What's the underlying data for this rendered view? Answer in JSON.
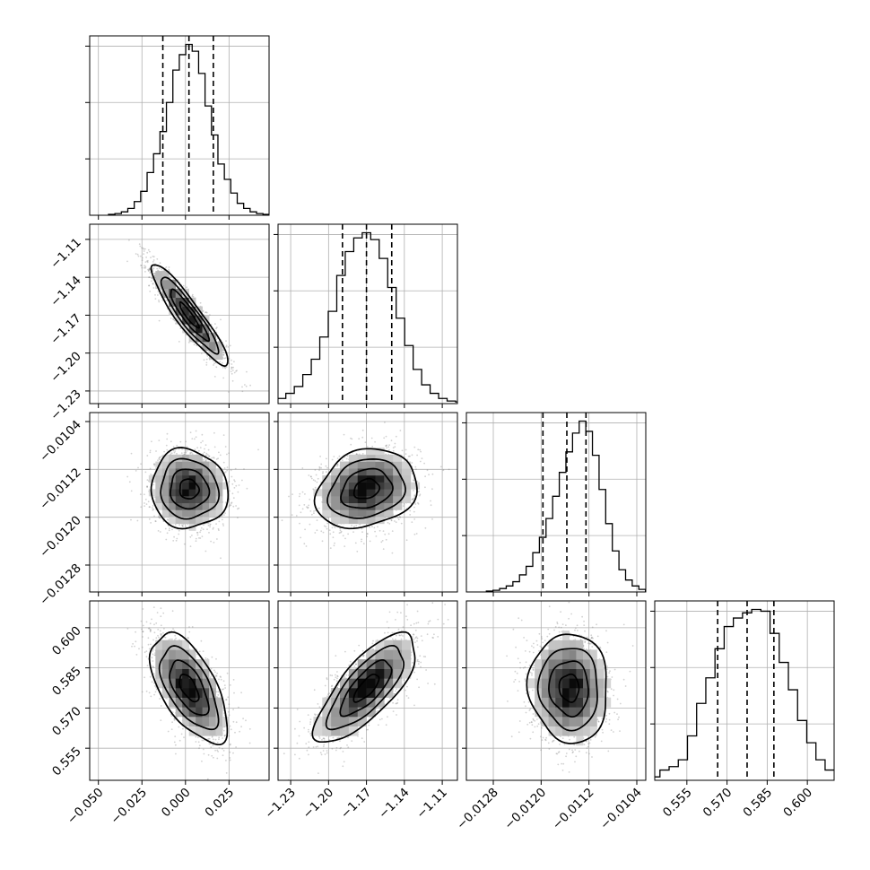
{
  "chart_data": {
    "type": "corner",
    "grid": true,
    "params": [
      {
        "range": [
          -0.055,
          0.048
        ],
        "ticks": [
          -0.05,
          -0.025,
          0.0,
          0.025
        ],
        "tick_labels": [
          "−0.050",
          "−0.025",
          "0.000",
          "0.025"
        ],
        "mean": 0.002,
        "sd": 0.011,
        "quantiles": [
          -0.013,
          0.002,
          0.016
        ],
        "hist_rel": [
          0.005,
          0.01,
          0.02,
          0.04,
          0.08,
          0.14,
          0.25,
          0.36,
          0.49,
          0.66,
          0.85,
          0.94,
          1.0,
          0.96,
          0.83,
          0.64,
          0.47,
          0.3,
          0.21,
          0.13,
          0.07,
          0.04,
          0.02,
          0.01,
          0.005
        ]
      },
      {
        "range": [
          -1.24,
          -1.098
        ],
        "ticks": [
          -1.23,
          -1.2,
          -1.17,
          -1.14,
          -1.11
        ],
        "tick_labels": [
          "−1.23",
          "−1.20",
          "−1.17",
          "−1.14",
          "−1.11"
        ],
        "mean": -1.17,
        "sd": 0.02,
        "quantiles": [
          -1.189,
          -1.17,
          -1.15
        ],
        "hist_rel": [
          0.01,
          0.015,
          0.03,
          0.06,
          0.1,
          0.17,
          0.26,
          0.39,
          0.54,
          0.75,
          0.89,
          0.97,
          1.0,
          0.96,
          0.85,
          0.68,
          0.5,
          0.34,
          0.2,
          0.11,
          0.06,
          0.03,
          0.015,
          0.01,
          0.005
        ]
      },
      {
        "range": [
          -0.01325,
          -0.01025
        ],
        "ticks": [
          -0.0128,
          -0.012,
          -0.0112,
          -0.0104
        ],
        "tick_labels": [
          "−0.0128",
          "−0.0120",
          "−0.0112",
          "−0.0104"
        ],
        "mean": -0.01153,
        "sd": 0.00033,
        "quantiles": [
          -0.01197,
          -0.01157,
          -0.01125
        ],
        "hist_rel": [
          0.005,
          0.01,
          0.02,
          0.035,
          0.06,
          0.1,
          0.15,
          0.23,
          0.32,
          0.43,
          0.56,
          0.7,
          0.82,
          0.93,
          1.0,
          0.94,
          0.8,
          0.6,
          0.4,
          0.24,
          0.13,
          0.07,
          0.035,
          0.015,
          0.005
        ]
      },
      {
        "range": [
          0.543,
          0.61
        ],
        "ticks": [
          0.555,
          0.57,
          0.585,
          0.6
        ],
        "tick_labels": [
          "0.555",
          "0.570",
          "0.585",
          "0.600"
        ],
        "mean": 0.5775,
        "sd": 0.0102,
        "quantiles": [
          0.5665,
          0.5775,
          0.5875
        ],
        "hist_rel": [
          0.005,
          0.01,
          0.02,
          0.06,
          0.08,
          0.12,
          0.26,
          0.45,
          0.6,
          0.77,
          0.9,
          0.95,
          0.98,
          1.0,
          0.99,
          0.86,
          0.69,
          0.53,
          0.35,
          0.22,
          0.12,
          0.06,
          0.03,
          0.015,
          0.005
        ]
      }
    ],
    "correlations": [
      [
        1.0,
        -0.92,
        -0.05,
        -0.6
      ],
      [
        -0.92,
        1.0,
        0.2,
        0.75
      ],
      [
        -0.05,
        0.2,
        1.0,
        -0.05
      ],
      [
        -0.6,
        0.75,
        -0.05,
        1.0
      ]
    ],
    "contour_levels_sigma": [
      0.5,
      1.0,
      1.5,
      2.0
    ]
  }
}
